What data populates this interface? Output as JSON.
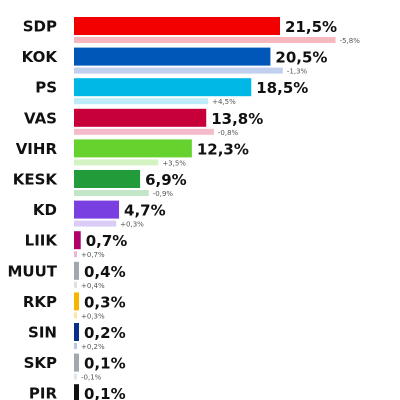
{
  "chart_data": {
    "type": "bar",
    "orientation": "horizontal",
    "categories": [
      "SDP",
      "KOK",
      "PS",
      "VAS",
      "VIHR",
      "KESK",
      "KD",
      "LIIK",
      "MUUT",
      "RKP",
      "SIN",
      "SKP",
      "PIR"
    ],
    "values": [
      21.5,
      20.5,
      18.5,
      13.8,
      12.3,
      6.9,
      4.7,
      0.7,
      0.4,
      0.3,
      0.2,
      0.1,
      0.1
    ],
    "value_labels": [
      "21,5%",
      "20,5%",
      "18,5%",
      "13,8%",
      "12,3%",
      "6,9%",
      "4,7%",
      "0,7%",
      "0,4%",
      "0,3%",
      "0,2%",
      "0,1%",
      "0,1%"
    ],
    "changes": [
      -5.8,
      -1.3,
      4.5,
      -0.8,
      3.5,
      -0.9,
      0.3,
      0.7,
      0.4,
      0.3,
      0.2,
      -0.1,
      null
    ],
    "change_labels": [
      "-5,8%",
      "-1,3%",
      "+4,5%",
      "-0,8%",
      "+3,5%",
      "-0,9%",
      "+0,3%",
      "+0,7%",
      "+0,4%",
      "+0,3%",
      "+0,2%",
      "-0,1%",
      ""
    ],
    "colors": [
      "#f20000",
      "#0057b8",
      "#00b8e6",
      "#c8003a",
      "#66d22e",
      "#229b3a",
      "#7a3fe0",
      "#b0006b",
      "#a0a8b0",
      "#f7b500",
      "#0a2f8a",
      "#a0a8b0",
      "#111111"
    ],
    "change_colors": [
      "#f6b8be",
      "#c0d0ee",
      "#bdecf8",
      "#f4bccb",
      "#d4f3c2",
      "#c4e6c8",
      "#dacbf7",
      "#f0b6d8",
      "#dde1e5",
      "#fbe6a8",
      "#bcc6e2",
      "#e2e6ea",
      "#bbbbbb"
    ],
    "xlim": [
      0,
      25
    ]
  }
}
